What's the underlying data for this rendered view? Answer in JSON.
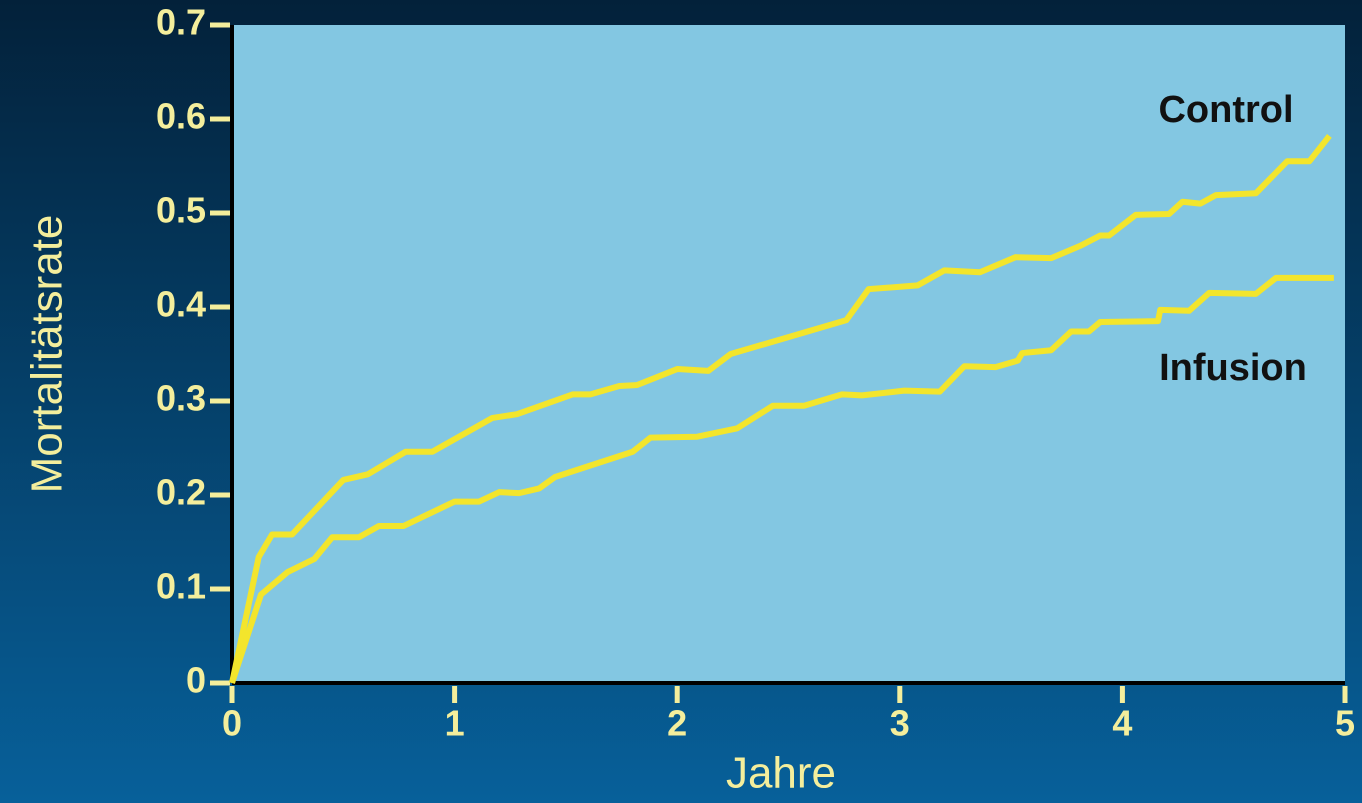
{
  "chart_data": {
    "type": "line",
    "xlabel": "Jahre",
    "ylabel": "Mortalitätsrate",
    "xlim": [
      0,
      5
    ],
    "ylim": [
      0,
      0.7
    ],
    "xticks": [
      0,
      1,
      2,
      3,
      4,
      5
    ],
    "yticks": [
      0,
      0.1,
      0.2,
      0.3,
      0.4,
      0.5,
      0.6,
      0.7
    ],
    "annotations": [
      "Control",
      "Infusion"
    ],
    "series": [
      {
        "name": "Control",
        "color": "#f3e52c",
        "x": [
          0,
          0.12,
          0.18,
          0.27,
          0.5,
          0.61,
          0.78,
          0.9,
          1.17,
          1.28,
          1.53,
          1.61,
          1.74,
          1.82,
          2.0,
          2.14,
          2.24,
          2.76,
          2.86,
          3.08,
          3.2,
          3.36,
          3.52,
          3.68,
          3.81,
          3.9,
          3.94,
          4.06,
          4.21,
          4.27,
          4.35,
          4.42,
          4.6,
          4.74,
          4.84,
          4.93
        ],
        "values": [
          0,
          0.134,
          0.158,
          0.158,
          0.216,
          0.222,
          0.246,
          0.246,
          0.282,
          0.286,
          0.307,
          0.307,
          0.316,
          0.317,
          0.334,
          0.332,
          0.35,
          0.386,
          0.419,
          0.423,
          0.439,
          0.437,
          0.453,
          0.452,
          0.465,
          0.476,
          0.476,
          0.498,
          0.499,
          0.512,
          0.51,
          0.519,
          0.521,
          0.555,
          0.555,
          0.582
        ]
      },
      {
        "name": "Infusion",
        "color": "#f3e52c",
        "x": [
          0,
          0.13,
          0.25,
          0.37,
          0.45,
          0.57,
          0.66,
          0.77,
          1.0,
          1.11,
          1.2,
          1.29,
          1.38,
          1.45,
          1.8,
          1.88,
          2.09,
          2.27,
          2.43,
          2.57,
          2.74,
          2.83,
          3.02,
          3.18,
          3.29,
          3.43,
          3.53,
          3.55,
          3.68,
          3.77,
          3.85,
          3.9,
          4.16,
          4.17,
          4.3,
          4.39,
          4.6,
          4.69,
          4.95
        ],
        "values": [
          0,
          0.094,
          0.118,
          0.132,
          0.155,
          0.155,
          0.167,
          0.167,
          0.193,
          0.193,
          0.203,
          0.202,
          0.207,
          0.219,
          0.246,
          0.261,
          0.262,
          0.271,
          0.295,
          0.295,
          0.307,
          0.306,
          0.311,
          0.31,
          0.337,
          0.336,
          0.343,
          0.351,
          0.354,
          0.374,
          0.374,
          0.384,
          0.385,
          0.397,
          0.396,
          0.415,
          0.414,
          0.431,
          0.431
        ]
      }
    ]
  }
}
